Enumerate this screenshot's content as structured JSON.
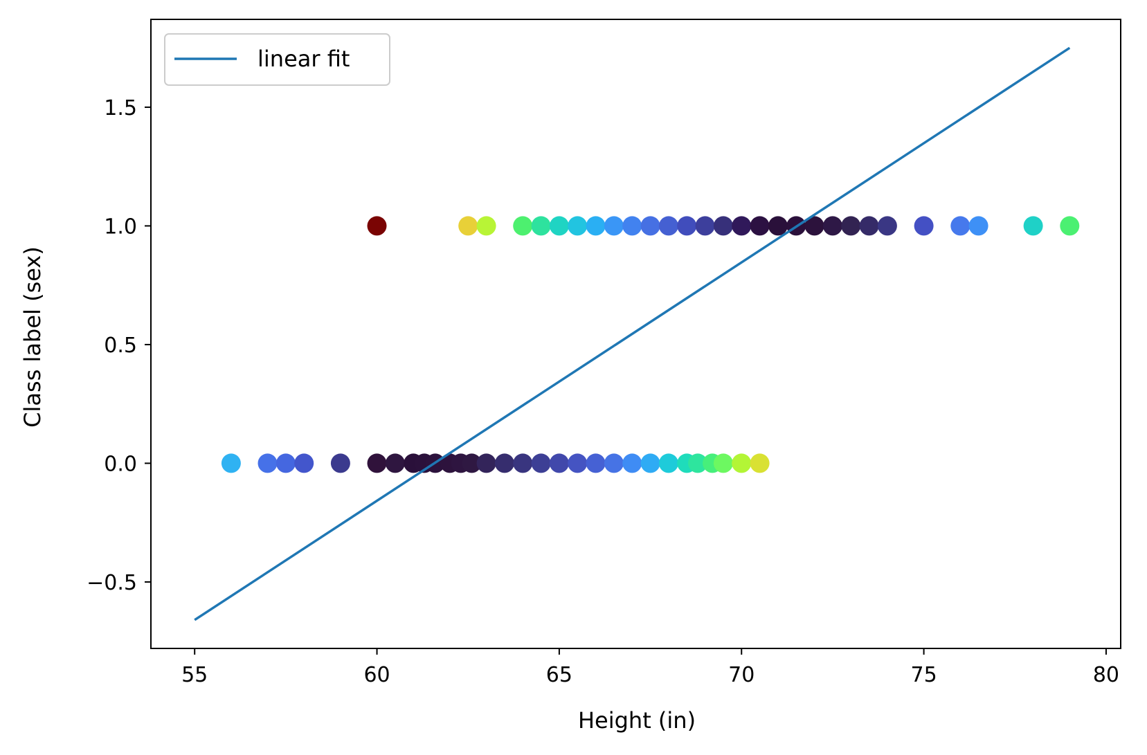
{
  "chart_data": {
    "type": "scatter",
    "title": "",
    "xlabel": "Height (in)",
    "ylabel": "Class label (sex)",
    "xlim": [
      53.8,
      80.4
    ],
    "ylim": [
      -0.78,
      1.87
    ],
    "xticks": [
      55,
      60,
      65,
      70,
      75,
      80
    ],
    "yticks": [
      -0.5,
      0.0,
      0.5,
      1.0,
      1.5
    ],
    "xtick_labels": [
      "55",
      "60",
      "65",
      "70",
      "75",
      "80"
    ],
    "ytick_labels": [
      "−0.5",
      "0.0",
      "0.5",
      "1.0",
      "1.5"
    ],
    "grid": false,
    "legend": {
      "position": "top-left",
      "entries": [
        "linear fit"
      ]
    },
    "series": [
      {
        "name": "linear fit",
        "type": "line",
        "color": "#1f77b4",
        "x": [
          55,
          79
        ],
        "y": [
          -0.66,
          1.75
        ]
      },
      {
        "type": "scatter",
        "marker": "circle",
        "points": [
          {
            "x": 56.0,
            "y": 0,
            "color": "#2fb2f2"
          },
          {
            "x": 57.0,
            "y": 0,
            "color": "#4671e8"
          },
          {
            "x": 57.5,
            "y": 0,
            "color": "#4567e0"
          },
          {
            "x": 58.0,
            "y": 0,
            "color": "#4356cc"
          },
          {
            "x": 59.0,
            "y": 0,
            "color": "#3b3a8e"
          },
          {
            "x": 60.0,
            "y": 0,
            "color": "#30123b"
          },
          {
            "x": 60.5,
            "y": 0,
            "color": "#2f1640"
          },
          {
            "x": 61.0,
            "y": 0,
            "color": "#2a103a"
          },
          {
            "x": 61.3,
            "y": 0,
            "color": "#2b113b"
          },
          {
            "x": 61.6,
            "y": 0,
            "color": "#2c123c"
          },
          {
            "x": 62.0,
            "y": 0,
            "color": "#2d133d"
          },
          {
            "x": 62.3,
            "y": 0,
            "color": "#2e1540"
          },
          {
            "x": 62.6,
            "y": 0,
            "color": "#2f1842"
          },
          {
            "x": 63.0,
            "y": 0,
            "color": "#33245a"
          },
          {
            "x": 63.5,
            "y": 0,
            "color": "#362d6e"
          },
          {
            "x": 64.0,
            "y": 0,
            "color": "#39357f"
          },
          {
            "x": 64.5,
            "y": 0,
            "color": "#3d3f95"
          },
          {
            "x": 65.0,
            "y": 0,
            "color": "#4148ab"
          },
          {
            "x": 65.5,
            "y": 0,
            "color": "#4554c2"
          },
          {
            "x": 66.0,
            "y": 0,
            "color": "#4661d4"
          },
          {
            "x": 66.5,
            "y": 0,
            "color": "#4673e5"
          },
          {
            "x": 67.0,
            "y": 0,
            "color": "#3f8cf4"
          },
          {
            "x": 67.5,
            "y": 0,
            "color": "#2fabf4"
          },
          {
            "x": 68.0,
            "y": 0,
            "color": "#1ecbda"
          },
          {
            "x": 68.5,
            "y": 0,
            "color": "#1fdcbb"
          },
          {
            "x": 68.8,
            "y": 0,
            "color": "#2ee59e"
          },
          {
            "x": 69.2,
            "y": 0,
            "color": "#47ef7b"
          },
          {
            "x": 69.5,
            "y": 0,
            "color": "#6df861"
          },
          {
            "x": 70.0,
            "y": 0,
            "color": "#b3f536"
          },
          {
            "x": 70.5,
            "y": 0,
            "color": "#d9e133"
          },
          {
            "x": 60.0,
            "y": 1,
            "color": "#7a0403"
          },
          {
            "x": 62.5,
            "y": 1,
            "color": "#e8d038"
          },
          {
            "x": 63.0,
            "y": 1,
            "color": "#b8f436"
          },
          {
            "x": 64.0,
            "y": 1,
            "color": "#4df06f"
          },
          {
            "x": 64.5,
            "y": 1,
            "color": "#2ee29e"
          },
          {
            "x": 65.0,
            "y": 1,
            "color": "#1fd4c3"
          },
          {
            "x": 65.5,
            "y": 1,
            "color": "#22c4e0"
          },
          {
            "x": 66.0,
            "y": 1,
            "color": "#2aaff3"
          },
          {
            "x": 66.5,
            "y": 1,
            "color": "#3a96f6"
          },
          {
            "x": 67.0,
            "y": 1,
            "color": "#4282ef"
          },
          {
            "x": 67.5,
            "y": 1,
            "color": "#4670e3"
          },
          {
            "x": 68.0,
            "y": 1,
            "color": "#4560d2"
          },
          {
            "x": 68.5,
            "y": 1,
            "color": "#414dbc"
          },
          {
            "x": 69.0,
            "y": 1,
            "color": "#3d3f9c"
          },
          {
            "x": 69.5,
            "y": 1,
            "color": "#37307a"
          },
          {
            "x": 70.0,
            "y": 1,
            "color": "#30195a"
          },
          {
            "x": 70.5,
            "y": 1,
            "color": "#2c1142"
          },
          {
            "x": 71.0,
            "y": 1,
            "color": "#2a103a"
          },
          {
            "x": 71.5,
            "y": 1,
            "color": "#2b103b"
          },
          {
            "x": 72.0,
            "y": 1,
            "color": "#2c123c"
          },
          {
            "x": 72.5,
            "y": 1,
            "color": "#2e1846"
          },
          {
            "x": 73.0,
            "y": 1,
            "color": "#322352"
          },
          {
            "x": 73.5,
            "y": 1,
            "color": "#352b68"
          },
          {
            "x": 74.0,
            "y": 1,
            "color": "#3a3784"
          },
          {
            "x": 75.0,
            "y": 1,
            "color": "#4450c4"
          },
          {
            "x": 76.0,
            "y": 1,
            "color": "#4679ec"
          },
          {
            "x": 76.5,
            "y": 1,
            "color": "#3e90f6"
          },
          {
            "x": 78.0,
            "y": 1,
            "color": "#1fd1c7"
          },
          {
            "x": 79.0,
            "y": 1,
            "color": "#4bf072"
          }
        ]
      }
    ]
  }
}
